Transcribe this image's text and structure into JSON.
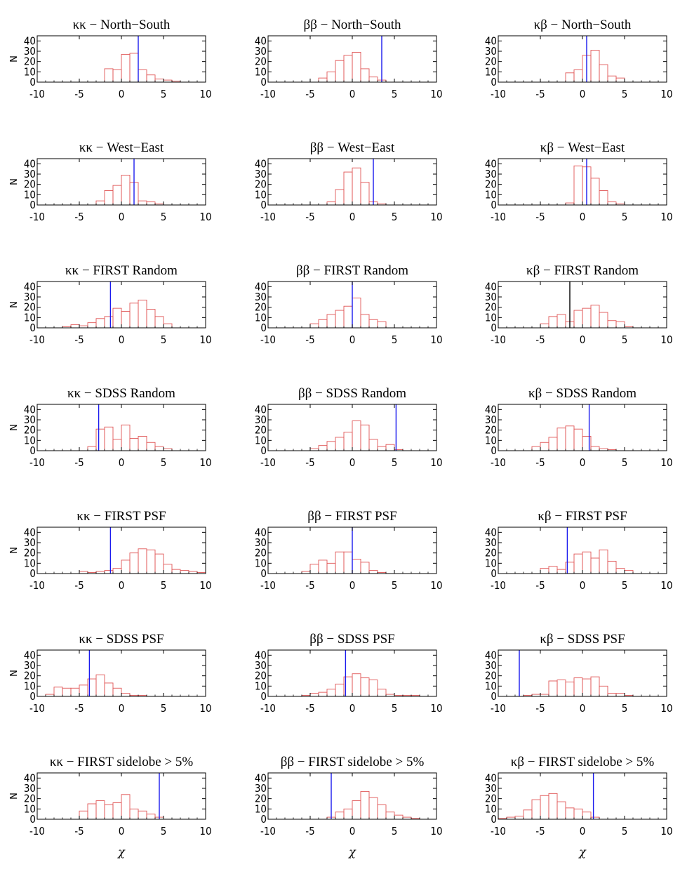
{
  "colors": {
    "histogram": "#e05656",
    "marker": "#1a1aee",
    "axes": "#000000"
  },
  "chart_data": [
    {
      "type": "bar",
      "title": "κκ − North−South",
      "ylabel": "N",
      "xlabel": "",
      "xlim": [
        -10,
        10
      ],
      "ylim": [
        0,
        45
      ],
      "xticks": [
        "-10",
        "-5",
        "0",
        "5",
        "10"
      ],
      "yticks": [
        "0",
        "10",
        "20",
        "30",
        "40"
      ],
      "bin_width": 1,
      "bin_lefts": [
        -2,
        -1,
        0,
        1,
        2,
        3,
        4,
        5,
        6
      ],
      "values": [
        13,
        12,
        27,
        28,
        12,
        7,
        3,
        2,
        1
      ],
      "marker": {
        "x": 2.0,
        "color": "blue"
      }
    },
    {
      "type": "bar",
      "title": "ββ − North−South",
      "ylabel": "",
      "xlabel": "",
      "xlim": [
        -10,
        10
      ],
      "ylim": [
        0,
        45
      ],
      "xticks": [
        "-10",
        "-5",
        "0",
        "5",
        "10"
      ],
      "yticks": [
        "0",
        "10",
        "20",
        "30",
        "40"
      ],
      "bin_width": 1,
      "bin_lefts": [
        -4,
        -3,
        -2,
        -1,
        0,
        1,
        2,
        3
      ],
      "values": [
        4,
        10,
        21,
        26,
        29,
        13,
        5,
        2
      ],
      "marker": {
        "x": 3.5,
        "color": "blue"
      }
    },
    {
      "type": "bar",
      "title": "κβ − North−South",
      "ylabel": "",
      "xlabel": "",
      "xlim": [
        -10,
        10
      ],
      "ylim": [
        0,
        45
      ],
      "xticks": [
        "-10",
        "-5",
        "0",
        "5",
        "10"
      ],
      "yticks": [
        "0",
        "10",
        "20",
        "30",
        "40"
      ],
      "bin_width": 1,
      "bin_lefts": [
        -2,
        -1,
        0,
        1,
        2,
        3,
        4
      ],
      "values": [
        9,
        12,
        26,
        31,
        17,
        6,
        4
      ],
      "marker": {
        "x": 0.5,
        "color": "blue"
      }
    },
    {
      "type": "bar",
      "title": "κκ − West−East",
      "ylabel": "N",
      "xlabel": "",
      "xlim": [
        -10,
        10
      ],
      "ylim": [
        0,
        45
      ],
      "xticks": [
        "-10",
        "-5",
        "0",
        "5",
        "10"
      ],
      "yticks": [
        "0",
        "10",
        "20",
        "30",
        "40"
      ],
      "bin_width": 1,
      "bin_lefts": [
        -3,
        -2,
        -1,
        0,
        1,
        2,
        3,
        4
      ],
      "values": [
        4,
        14,
        19,
        29,
        22,
        4,
        3,
        1
      ],
      "marker": {
        "x": 1.5,
        "color": "blue"
      }
    },
    {
      "type": "bar",
      "title": "ββ − West−East",
      "ylabel": "",
      "xlabel": "",
      "xlim": [
        -10,
        10
      ],
      "ylim": [
        0,
        45
      ],
      "xticks": [
        "-10",
        "-5",
        "0",
        "5",
        "10"
      ],
      "yticks": [
        "0",
        "10",
        "20",
        "30",
        "40"
      ],
      "bin_width": 1,
      "bin_lefts": [
        -3,
        -2,
        -1,
        0,
        1,
        2,
        3
      ],
      "values": [
        3,
        15,
        32,
        36,
        22,
        3,
        1
      ],
      "marker": {
        "x": 2.5,
        "color": "blue"
      }
    },
    {
      "type": "bar",
      "title": "κβ − West−East",
      "ylabel": "",
      "xlabel": "",
      "xlim": [
        -10,
        10
      ],
      "ylim": [
        0,
        45
      ],
      "xticks": [
        "-10",
        "-5",
        "0",
        "5",
        "10"
      ],
      "yticks": [
        "0",
        "10",
        "20",
        "30",
        "40"
      ],
      "bin_width": 1,
      "bin_lefts": [
        -2,
        -1,
        0,
        1,
        2,
        3,
        4
      ],
      "values": [
        2,
        38,
        37,
        26,
        14,
        3,
        1
      ],
      "marker": {
        "x": 0.5,
        "color": "blue"
      }
    },
    {
      "type": "bar",
      "title": "κκ − FIRST Random",
      "ylabel": "N",
      "xlabel": "",
      "xlim": [
        -10,
        10
      ],
      "ylim": [
        0,
        45
      ],
      "xticks": [
        "-10",
        "-5",
        "0",
        "5",
        "10"
      ],
      "yticks": [
        "0",
        "10",
        "20",
        "30",
        "40"
      ],
      "bin_width": 1,
      "bin_lefts": [
        -7,
        -6,
        -5,
        -4,
        -3,
        -2,
        -1,
        0,
        1,
        2,
        3,
        4,
        5
      ],
      "values": [
        1,
        3,
        2,
        5,
        9,
        11,
        19,
        16,
        24,
        27,
        18,
        11,
        4
      ],
      "marker": {
        "x": -1.3,
        "color": "blue"
      }
    },
    {
      "type": "bar",
      "title": "ββ − FIRST Random",
      "ylabel": "",
      "xlabel": "",
      "xlim": [
        -10,
        10
      ],
      "ylim": [
        0,
        45
      ],
      "xticks": [
        "-10",
        "-5",
        "0",
        "5",
        "10"
      ],
      "yticks": [
        "0",
        "10",
        "20",
        "30",
        "40"
      ],
      "bin_width": 1,
      "bin_lefts": [
        -5,
        -4,
        -3,
        -2,
        -1,
        0,
        1,
        2,
        3
      ],
      "values": [
        4,
        8,
        13,
        17,
        21,
        29,
        13,
        8,
        6
      ],
      "marker": {
        "x": 0,
        "color": "blue"
      }
    },
    {
      "type": "bar",
      "title": "κβ − FIRST Random",
      "ylabel": "",
      "xlabel": "",
      "xlim": [
        -10,
        10
      ],
      "ylim": [
        0,
        45
      ],
      "xticks": [
        "-10",
        "-5",
        "0",
        "5",
        "10"
      ],
      "yticks": [
        "0",
        "10",
        "20",
        "30",
        "40"
      ],
      "bin_width": 1,
      "bin_lefts": [
        -5,
        -4,
        -3,
        -2,
        -1,
        0,
        1,
        2,
        3,
        4,
        5
      ],
      "values": [
        4,
        11,
        13,
        6,
        17,
        19,
        22,
        15,
        7,
        6,
        1
      ],
      "marker": {
        "x": -1.5,
        "color": "black"
      }
    },
    {
      "type": "bar",
      "title": "κκ − SDSS Random",
      "ylabel": "N",
      "xlabel": "",
      "xlim": [
        -10,
        10
      ],
      "ylim": [
        0,
        45
      ],
      "xticks": [
        "-10",
        "-5",
        "0",
        "5",
        "10"
      ],
      "yticks": [
        "0",
        "10",
        "20",
        "30",
        "40"
      ],
      "bin_width": 1,
      "bin_lefts": [
        -4,
        -3,
        -2,
        -1,
        0,
        1,
        2,
        3,
        4,
        5
      ],
      "values": [
        4,
        21,
        23,
        11,
        25,
        12,
        14,
        8,
        4,
        2
      ],
      "marker": {
        "x": -2.7,
        "color": "blue"
      }
    },
    {
      "type": "bar",
      "title": "ββ − SDSS Random",
      "ylabel": "",
      "xlabel": "",
      "xlim": [
        -10,
        10
      ],
      "ylim": [
        0,
        45
      ],
      "xticks": [
        "-10",
        "-5",
        "0",
        "5",
        "10"
      ],
      "yticks": [
        "0",
        "10",
        "20",
        "30",
        "40"
      ],
      "bin_width": 1,
      "bin_lefts": [
        -5,
        -4,
        -3,
        -2,
        -1,
        0,
        1,
        2,
        3,
        4,
        5
      ],
      "values": [
        2,
        5,
        9,
        13,
        18,
        29,
        25,
        11,
        4,
        6,
        1
      ],
      "marker": {
        "x": 5.2,
        "color": "blue"
      }
    },
    {
      "type": "bar",
      "title": "κβ − SDSS Random",
      "ylabel": "",
      "xlabel": "",
      "xlim": [
        -10,
        10
      ],
      "ylim": [
        0,
        45
      ],
      "xticks": [
        "-10",
        "-5",
        "0",
        "5",
        "10"
      ],
      "yticks": [
        "0",
        "10",
        "20",
        "30",
        "40"
      ],
      "bin_width": 1,
      "bin_lefts": [
        -6,
        -5,
        -4,
        -3,
        -2,
        -1,
        0,
        1,
        2,
        3
      ],
      "values": [
        4,
        8,
        13,
        22,
        24,
        21,
        14,
        4,
        2,
        1
      ],
      "marker": {
        "x": 0.8,
        "color": "blue"
      }
    },
    {
      "type": "bar",
      "title": "κκ − FIRST PSF",
      "ylabel": "N",
      "xlabel": "",
      "xlim": [
        -10,
        10
      ],
      "ylim": [
        0,
        45
      ],
      "xticks": [
        "-10",
        "-5",
        "0",
        "5",
        "10"
      ],
      "yticks": [
        "0",
        "10",
        "20",
        "30",
        "40"
      ],
      "bin_width": 1,
      "bin_lefts": [
        -5,
        -4,
        -3,
        -2,
        -1,
        0,
        1,
        2,
        3,
        4,
        5,
        6,
        7,
        8,
        9
      ],
      "values": [
        2,
        1,
        2,
        3,
        5,
        13,
        20,
        24,
        23,
        19,
        9,
        4,
        3,
        2,
        1
      ],
      "marker": {
        "x": -1.3,
        "color": "blue"
      }
    },
    {
      "type": "bar",
      "title": "ββ − FIRST PSF",
      "ylabel": "",
      "xlabel": "",
      "xlim": [
        -10,
        10
      ],
      "ylim": [
        0,
        45
      ],
      "xticks": [
        "-10",
        "-5",
        "0",
        "5",
        "10"
      ],
      "yticks": [
        "0",
        "10",
        "20",
        "30",
        "40"
      ],
      "bin_width": 1,
      "bin_lefts": [
        -6,
        -5,
        -4,
        -3,
        -2,
        -1,
        0,
        1,
        2,
        3
      ],
      "values": [
        2,
        9,
        13,
        10,
        21,
        21,
        14,
        11,
        3,
        1
      ],
      "marker": {
        "x": 0,
        "color": "blue"
      }
    },
    {
      "type": "bar",
      "title": "κβ − FIRST PSF",
      "ylabel": "",
      "xlabel": "",
      "xlim": [
        -10,
        10
      ],
      "ylim": [
        0,
        45
      ],
      "xticks": [
        "-10",
        "-5",
        "0",
        "5",
        "10"
      ],
      "yticks": [
        "0",
        "10",
        "20",
        "30",
        "40"
      ],
      "bin_width": 1,
      "bin_lefts": [
        -5,
        -4,
        -3,
        -2,
        -1,
        0,
        1,
        2,
        3,
        4,
        5
      ],
      "values": [
        5,
        7,
        4,
        11,
        19,
        21,
        15,
        23,
        12,
        5,
        3
      ],
      "marker": {
        "x": -1.8,
        "color": "blue"
      }
    },
    {
      "type": "bar",
      "title": "κκ − SDSS PSF",
      "ylabel": "N",
      "xlabel": "",
      "xlim": [
        -10,
        10
      ],
      "ylim": [
        0,
        45
      ],
      "xticks": [
        "-10",
        "-5",
        "0",
        "5",
        "10"
      ],
      "yticks": [
        "0",
        "10",
        "20",
        "30",
        "40"
      ],
      "bin_width": 1,
      "bin_lefts": [
        -9,
        -8,
        -7,
        -6,
        -5,
        -4,
        -3,
        -2,
        -1,
        0,
        1,
        2
      ],
      "values": [
        2,
        9,
        8,
        8,
        11,
        17,
        21,
        13,
        8,
        3,
        1,
        1
      ],
      "marker": {
        "x": -3.8,
        "color": "blue"
      }
    },
    {
      "type": "bar",
      "title": "ββ − SDSS PSF",
      "ylabel": "",
      "xlabel": "",
      "xlim": [
        -10,
        10
      ],
      "ylim": [
        0,
        45
      ],
      "xticks": [
        "-10",
        "-5",
        "0",
        "5",
        "10"
      ],
      "yticks": [
        "0",
        "10",
        "20",
        "30",
        "40"
      ],
      "bin_width": 1,
      "bin_lefts": [
        -6,
        -5,
        -4,
        -3,
        -2,
        -1,
        0,
        1,
        2,
        3,
        4,
        5,
        6,
        7
      ],
      "values": [
        1,
        3,
        4,
        7,
        12,
        19,
        22,
        18,
        16,
        7,
        2,
        1,
        1,
        1
      ],
      "marker": {
        "x": -0.8,
        "color": "blue"
      }
    },
    {
      "type": "bar",
      "title": "κβ − SDSS PSF",
      "ylabel": "",
      "xlabel": "",
      "xlim": [
        -10,
        10
      ],
      "ylim": [
        0,
        45
      ],
      "xticks": [
        "-10",
        "-5",
        "0",
        "5",
        "10"
      ],
      "yticks": [
        "0",
        "10",
        "20",
        "30",
        "40"
      ],
      "bin_width": 1,
      "bin_lefts": [
        -7,
        -6,
        -5,
        -4,
        -3,
        -2,
        -1,
        0,
        1,
        2,
        3,
        4,
        5
      ],
      "values": [
        1,
        2,
        2,
        15,
        16,
        14,
        18,
        17,
        19,
        10,
        3,
        3,
        1
      ],
      "marker": {
        "x": -7.5,
        "color": "blue"
      }
    },
    {
      "type": "bar",
      "title": "κκ − FIRST sidelobe > 5%",
      "ylabel": "N",
      "xlabel": "χ",
      "xlim": [
        -10,
        10
      ],
      "ylim": [
        0,
        45
      ],
      "xticks": [
        "-10",
        "-5",
        "0",
        "5",
        "10"
      ],
      "yticks": [
        "0",
        "10",
        "20",
        "30",
        "40"
      ],
      "bin_width": 1,
      "bin_lefts": [
        -5,
        -4,
        -3,
        -2,
        -1,
        0,
        1,
        2,
        3,
        4
      ],
      "values": [
        8,
        15,
        18,
        14,
        16,
        24,
        10,
        8,
        5,
        2
      ],
      "marker": {
        "x": 4.5,
        "color": "blue"
      }
    },
    {
      "type": "bar",
      "title": "ββ − FIRST sidelobe > 5%",
      "ylabel": "",
      "xlabel": "χ",
      "xlim": [
        -10,
        10
      ],
      "ylim": [
        0,
        45
      ],
      "xticks": [
        "-10",
        "-5",
        "0",
        "5",
        "10"
      ],
      "yticks": [
        "0",
        "10",
        "20",
        "30",
        "40"
      ],
      "bin_width": 1,
      "bin_lefts": [
        -3,
        -2,
        -1,
        0,
        1,
        2,
        3,
        4,
        5,
        6,
        7
      ],
      "values": [
        2,
        7,
        10,
        18,
        27,
        21,
        14,
        7,
        4,
        2,
        1
      ],
      "marker": {
        "x": -2.5,
        "color": "blue"
      }
    },
    {
      "type": "bar",
      "title": "κβ − FIRST sidelobe > 5%",
      "ylabel": "",
      "xlabel": "χ",
      "xlim": [
        -10,
        10
      ],
      "ylim": [
        0,
        45
      ],
      "xticks": [
        "-10",
        "-5",
        "0",
        "5",
        "10"
      ],
      "yticks": [
        "0",
        "10",
        "20",
        "30",
        "40"
      ],
      "bin_width": 1,
      "bin_lefts": [
        -10,
        -9,
        -8,
        -7,
        -6,
        -5,
        -4,
        -3,
        -2,
        -1,
        0,
        1
      ],
      "values": [
        1,
        2,
        3,
        9,
        19,
        23,
        25,
        17,
        11,
        10,
        7,
        2
      ],
      "marker": {
        "x": 1.3,
        "color": "blue"
      }
    }
  ]
}
